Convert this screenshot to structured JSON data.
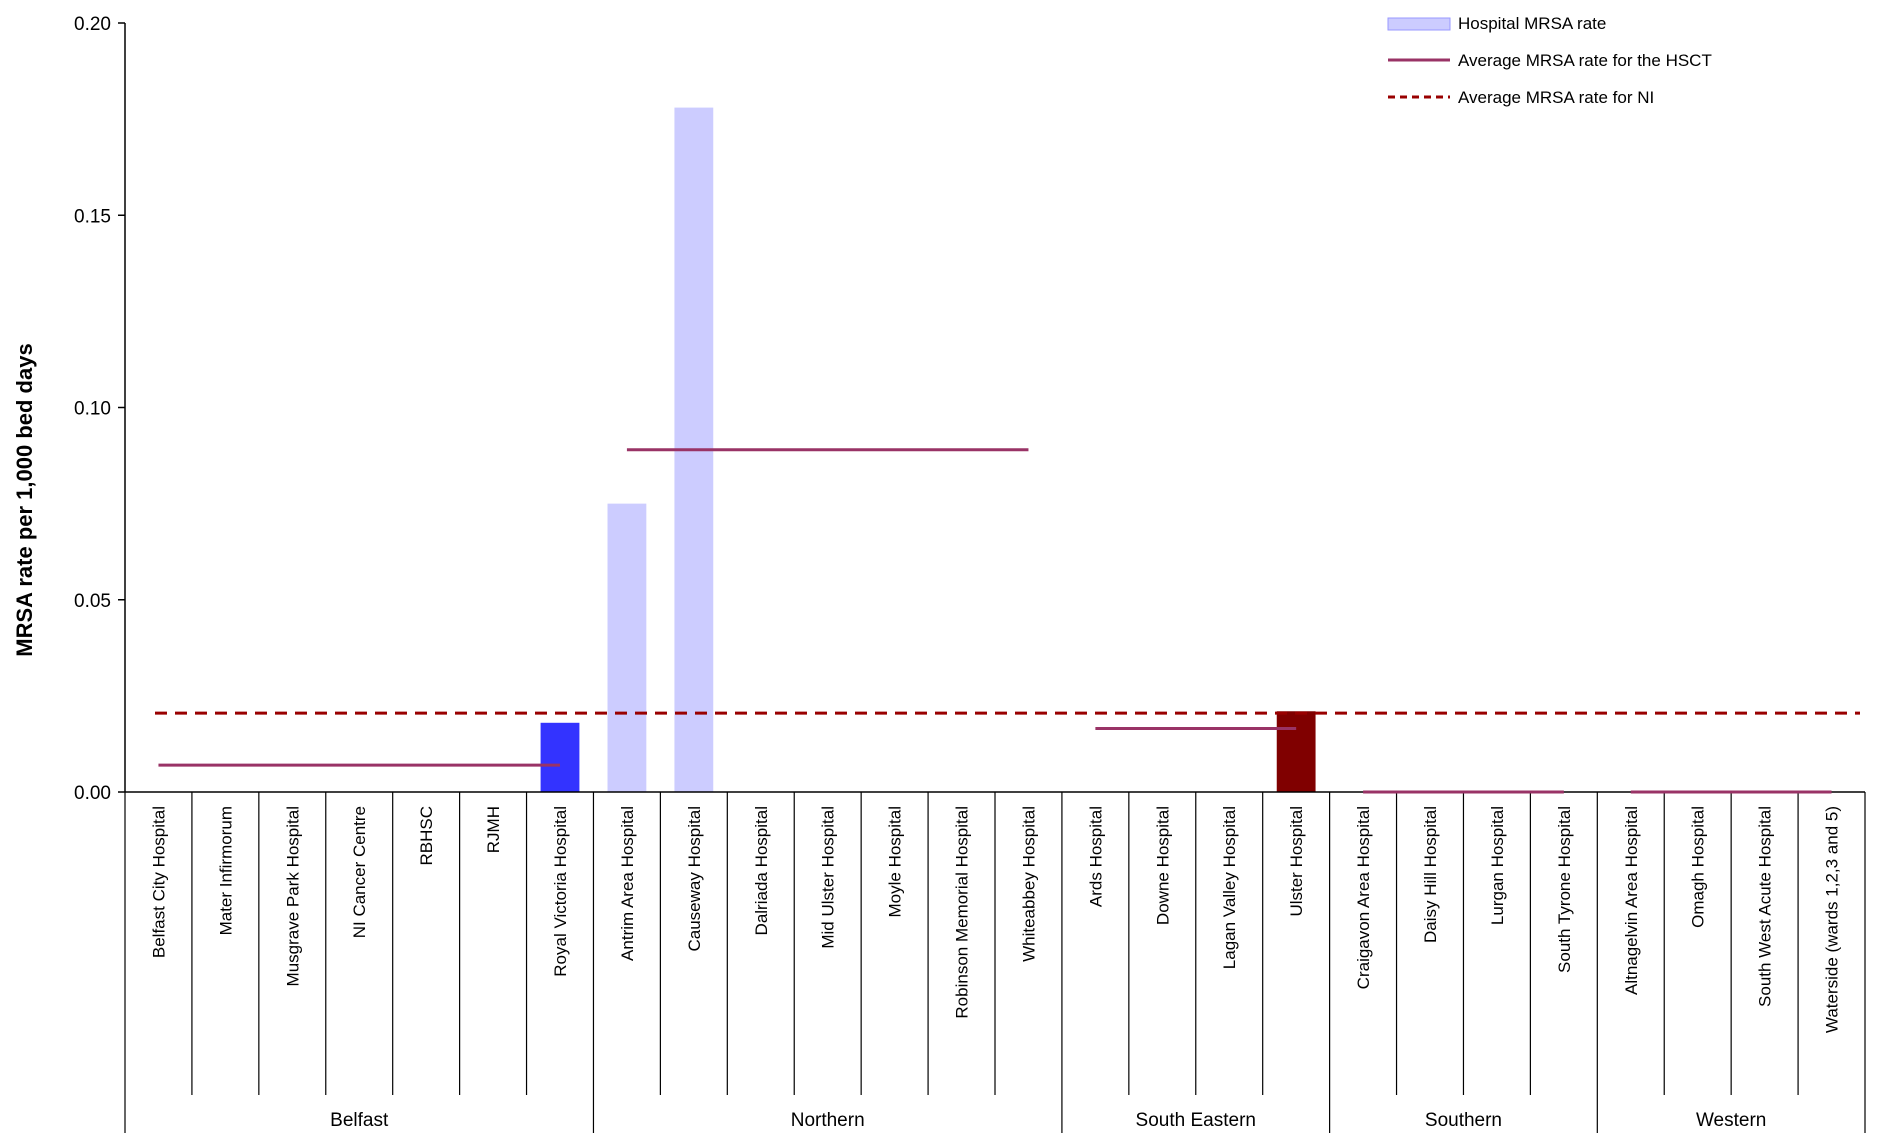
{
  "chart_data": {
    "type": "bar",
    "ylabel": "MRSA rate per 1,000 bed days",
    "ylim": [
      0,
      0.2
    ],
    "yticks": [
      "0.00",
      "0.05",
      "0.10",
      "0.15",
      "0.20"
    ],
    "ytick_values": [
      0,
      0.05,
      0.1,
      0.15,
      0.2
    ],
    "categories": [
      "Belfast City Hospital",
      "Mater Infirmorum",
      "Musgrave Park Hospital",
      "NI Cancer Centre",
      "RBHSC",
      "RJMH",
      "Royal Victoria Hospital",
      "Antrim Area Hospital",
      "Causeway Hospital",
      "Dalriada Hospital",
      "Mid Ulster Hospital",
      "Moyle Hospital",
      "Robinson Memorial Hospital",
      "Whiteabbey Hospital",
      "Ards Hospital",
      "Downe Hospital",
      "Lagan Valley Hospital",
      "Ulster Hospital",
      "Craigavon Area Hospital",
      "Daisy Hill Hospital",
      "Lurgan Hospital",
      "South Tyrone Hospital",
      "Altnagelvin Area Hospital",
      "Omagh Hospital",
      "South West Acute Hospital",
      "Waterside (wards 1,2,3 and 5)"
    ],
    "groups": [
      {
        "name": "Belfast",
        "count": 7,
        "avg": 0.007
      },
      {
        "name": "Northern",
        "count": 7,
        "avg": 0.089
      },
      {
        "name": "South Eastern",
        "count": 4,
        "avg": 0.0165
      },
      {
        "name": "Southern",
        "count": 4,
        "avg": 0
      },
      {
        "name": "Western",
        "count": 4,
        "avg": 0
      }
    ],
    "series": [
      {
        "name": "Hospital MRSA rate",
        "values": [
          0,
          0,
          0,
          0,
          0,
          0,
          0.018,
          0.075,
          0.178,
          0,
          0,
          0,
          0,
          0,
          0,
          0,
          0,
          0.021,
          0,
          0,
          0,
          0,
          0,
          0,
          0,
          0
        ]
      },
      {
        "name": "Average MRSA rate for the HSCT"
      },
      {
        "name": "Average MRSA rate for NI",
        "value": 0.0205
      }
    ],
    "highlight": {
      "Royal Victoria Hospital": "#3333ff",
      "Ulster Hospital": "#800000"
    },
    "colors": {
      "bar": "#ccccff",
      "hsct_line": "#993366",
      "ni_line": "#990000",
      "axis": "#000000"
    },
    "legend_position": "top-right",
    "grid": false
  }
}
